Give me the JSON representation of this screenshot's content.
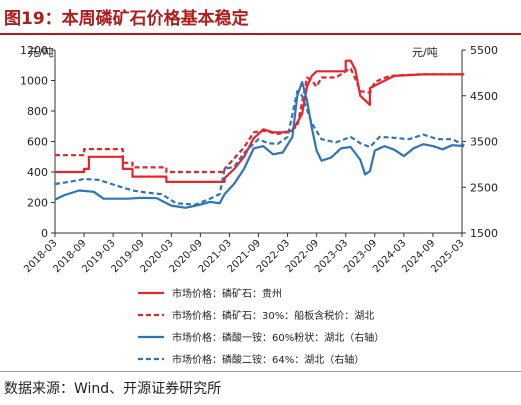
{
  "figure": {
    "title": "图19：本周磷矿石价格基本稳定",
    "source": "数据来源：Wind、开源证券研究所"
  },
  "chart_data": {
    "type": "line",
    "left_axis": {
      "unit_label": "元/吨",
      "ylim": [
        0,
        1200
      ],
      "ticks": [
        0,
        200,
        400,
        600,
        800,
        1000,
        1200
      ]
    },
    "right_axis": {
      "unit_label": "元/吨",
      "ylim": [
        1500,
        5500
      ],
      "ticks": [
        1500,
        2500,
        3500,
        4500,
        5500
      ]
    },
    "xlim": [
      "2018-03",
      "2025-03"
    ],
    "x_ticks": [
      "2018-03",
      "2018-09",
      "2019-03",
      "2019-09",
      "2020-03",
      "2020-09",
      "2021-03",
      "2021-09",
      "2022-03",
      "2022-09",
      "2023-03",
      "2023-09",
      "2024-03",
      "2024-09",
      "2025-03"
    ],
    "grid": false,
    "legend_position": "bottom",
    "series": [
      {
        "name": "市场价格：磷矿石：贵州",
        "axis": "left",
        "color": "#e8242a",
        "dash": "solid",
        "points": [
          [
            "2018-03-01",
            400
          ],
          [
            "2018-09-01",
            400
          ],
          [
            "2018-09-01",
            420
          ],
          [
            "2018-10-01",
            420
          ],
          [
            "2018-10-01",
            500
          ],
          [
            "2019-05-01",
            500
          ],
          [
            "2019-05-01",
            420
          ],
          [
            "2019-07-01",
            420
          ],
          [
            "2019-07-01",
            370
          ],
          [
            "2020-02-01",
            370
          ],
          [
            "2020-02-01",
            335
          ],
          [
            "2021-02-01",
            335
          ],
          [
            "2021-02-01",
            360
          ],
          [
            "2021-04-01",
            420
          ],
          [
            "2021-06-01",
            500
          ],
          [
            "2021-08-01",
            620
          ],
          [
            "2021-10-01",
            680
          ],
          [
            "2021-12-01",
            660
          ],
          [
            "2022-02-01",
            660
          ],
          [
            "2022-04-01",
            670
          ],
          [
            "2022-06-01",
            780
          ],
          [
            "2022-07-01",
            960
          ],
          [
            "2022-08-01",
            1030
          ],
          [
            "2022-09-01",
            1060
          ],
          [
            "2023-03-01",
            1060
          ],
          [
            "2023-03-01",
            1130
          ],
          [
            "2023-04-01",
            1130
          ],
          [
            "2023-05-01",
            1070
          ],
          [
            "2023-06-01",
            900
          ],
          [
            "2023-08-01",
            840
          ],
          [
            "2023-08-01",
            950
          ],
          [
            "2024-01-01",
            1030
          ],
          [
            "2024-07-01",
            1040
          ],
          [
            "2025-03-15",
            1040
          ]
        ]
      },
      {
        "name": "市场价格：磷矿石：30%：船板含税价：湖北",
        "axis": "left",
        "color": "#e8242a",
        "dash": "dashed",
        "points": [
          [
            "2018-03-01",
            510
          ],
          [
            "2018-09-01",
            510
          ],
          [
            "2018-09-01",
            550
          ],
          [
            "2019-05-01",
            550
          ],
          [
            "2019-05-01",
            460
          ],
          [
            "2019-07-01",
            460
          ],
          [
            "2019-07-01",
            430
          ],
          [
            "2020-02-01",
            430
          ],
          [
            "2020-02-01",
            400
          ],
          [
            "2021-02-01",
            400
          ],
          [
            "2021-02-01",
            420
          ],
          [
            "2021-06-01",
            560
          ],
          [
            "2021-08-01",
            660
          ],
          [
            "2021-10-01",
            670
          ],
          [
            "2022-01-01",
            650
          ],
          [
            "2022-03-01",
            660
          ],
          [
            "2022-05-01",
            700
          ],
          [
            "2022-07-01",
            1020
          ],
          [
            "2022-08-01",
            1000
          ],
          [
            "2022-09-01",
            960
          ],
          [
            "2022-10-01",
            1020
          ],
          [
            "2023-01-01",
            1020
          ],
          [
            "2023-03-01",
            1060
          ],
          [
            "2023-04-01",
            1080
          ],
          [
            "2023-05-01",
            1010
          ],
          [
            "2023-06-01",
            930
          ],
          [
            "2023-08-01",
            920
          ],
          [
            "2023-09-01",
            990
          ],
          [
            "2023-12-01",
            1030
          ],
          [
            "2024-06-01",
            1040
          ],
          [
            "2025-03-15",
            1040
          ]
        ]
      },
      {
        "name": "市场价格：磷酸一铵：60%粉状：湖北（右轴）",
        "axis": "right",
        "color": "#2e75b6",
        "dash": "solid",
        "points": [
          [
            "2018-03-01",
            2230
          ],
          [
            "2018-05-01",
            2330
          ],
          [
            "2018-08-01",
            2430
          ],
          [
            "2018-11-01",
            2400
          ],
          [
            "2019-01-01",
            2250
          ],
          [
            "2019-06-01",
            2250
          ],
          [
            "2019-09-01",
            2270
          ],
          [
            "2019-12-01",
            2260
          ],
          [
            "2020-03-01",
            2100
          ],
          [
            "2020-06-01",
            2050
          ],
          [
            "2020-09-01",
            2120
          ],
          [
            "2020-11-01",
            2180
          ],
          [
            "2021-01-01",
            2150
          ],
          [
            "2021-02-01",
            2350
          ],
          [
            "2021-04-01",
            2580
          ],
          [
            "2021-06-01",
            2900
          ],
          [
            "2021-08-01",
            3350
          ],
          [
            "2021-10-01",
            3400
          ],
          [
            "2021-12-01",
            3220
          ],
          [
            "2022-02-01",
            3260
          ],
          [
            "2022-04-01",
            3600
          ],
          [
            "2022-05-01",
            4500
          ],
          [
            "2022-06-01",
            4800
          ],
          [
            "2022-07-01",
            4400
          ],
          [
            "2022-08-01",
            3800
          ],
          [
            "2022-09-01",
            3300
          ],
          [
            "2022-10-01",
            3080
          ],
          [
            "2022-12-01",
            3150
          ],
          [
            "2023-02-01",
            3350
          ],
          [
            "2023-04-01",
            3380
          ],
          [
            "2023-06-01",
            3100
          ],
          [
            "2023-07-01",
            2780
          ],
          [
            "2023-08-01",
            2850
          ],
          [
            "2023-09-01",
            3300
          ],
          [
            "2023-11-01",
            3400
          ],
          [
            "2024-01-01",
            3320
          ],
          [
            "2024-03-01",
            3180
          ],
          [
            "2024-05-01",
            3350
          ],
          [
            "2024-07-01",
            3440
          ],
          [
            "2024-09-01",
            3400
          ],
          [
            "2024-11-01",
            3330
          ],
          [
            "2025-01-01",
            3420
          ],
          [
            "2025-03-15",
            3400
          ]
        ]
      },
      {
        "name": "市场价格：磷酸二铵：64%：湖北（右轴）",
        "axis": "right",
        "color": "#2e75b6",
        "dash": "dashed",
        "points": [
          [
            "2018-03-01",
            2570
          ],
          [
            "2018-06-01",
            2620
          ],
          [
            "2018-09-01",
            2680
          ],
          [
            "2018-12-01",
            2660
          ],
          [
            "2019-03-01",
            2560
          ],
          [
            "2019-07-01",
            2430
          ],
          [
            "2019-10-01",
            2380
          ],
          [
            "2020-01-01",
            2350
          ],
          [
            "2020-04-01",
            2150
          ],
          [
            "2020-08-01",
            2120
          ],
          [
            "2020-11-01",
            2250
          ],
          [
            "2021-01-01",
            2350
          ],
          [
            "2021-02-01",
            2900
          ],
          [
            "2021-04-01",
            2950
          ],
          [
            "2021-06-01",
            3250
          ],
          [
            "2021-09-01",
            3550
          ],
          [
            "2021-11-01",
            3460
          ],
          [
            "2022-01-01",
            3450
          ],
          [
            "2022-03-01",
            3600
          ],
          [
            "2022-05-01",
            4600
          ],
          [
            "2022-06-01",
            4500
          ],
          [
            "2022-08-01",
            3900
          ],
          [
            "2022-10-01",
            3550
          ],
          [
            "2023-01-01",
            3480
          ],
          [
            "2023-04-01",
            3600
          ],
          [
            "2023-06-01",
            3460
          ],
          [
            "2023-08-01",
            3380
          ],
          [
            "2023-10-01",
            3600
          ],
          [
            "2024-01-01",
            3580
          ],
          [
            "2024-04-01",
            3550
          ],
          [
            "2024-07-01",
            3650
          ],
          [
            "2024-10-01",
            3550
          ],
          [
            "2025-01-01",
            3550
          ],
          [
            "2025-03-15",
            3420
          ]
        ]
      }
    ]
  }
}
